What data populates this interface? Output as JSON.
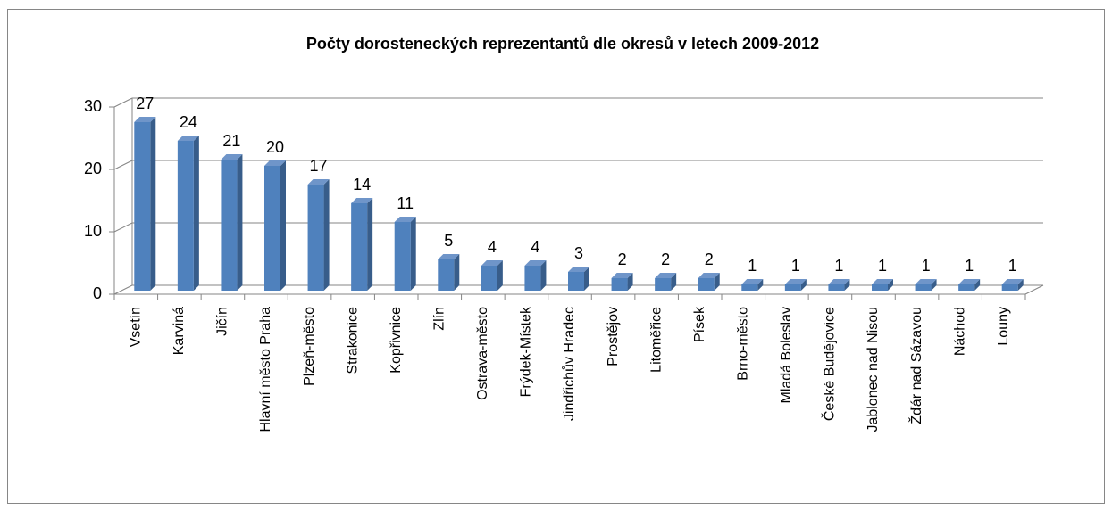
{
  "chart_data": {
    "type": "bar",
    "title": "Počty dorosteneckých reprezentantů dle okresů v letech 2009-2012",
    "categories": [
      "Vsetín",
      "Karviná",
      "Jičín",
      "Hlavní město Praha",
      "Plzeň-město",
      "Strakonice",
      "Kopřivnice",
      "Zlín",
      "Ostrava-město",
      "Frýdek-Místek",
      "Jindřichův Hradec",
      "Prostějov",
      "Litoměřice",
      "Písek",
      "Brno-město",
      "Mladá Boleslav",
      "České Budějovice",
      "Jablonec nad Nisou",
      "Žďár nad Sázavou",
      "Náchod",
      "Louny"
    ],
    "values": [
      27,
      24,
      21,
      20,
      17,
      14,
      11,
      5,
      4,
      4,
      3,
      2,
      2,
      2,
      1,
      1,
      1,
      1,
      1,
      1,
      1
    ],
    "color": "#4f81bd",
    "ylim": [
      0,
      30
    ],
    "yticks": [
      0,
      10,
      20,
      30
    ],
    "grid": true
  }
}
